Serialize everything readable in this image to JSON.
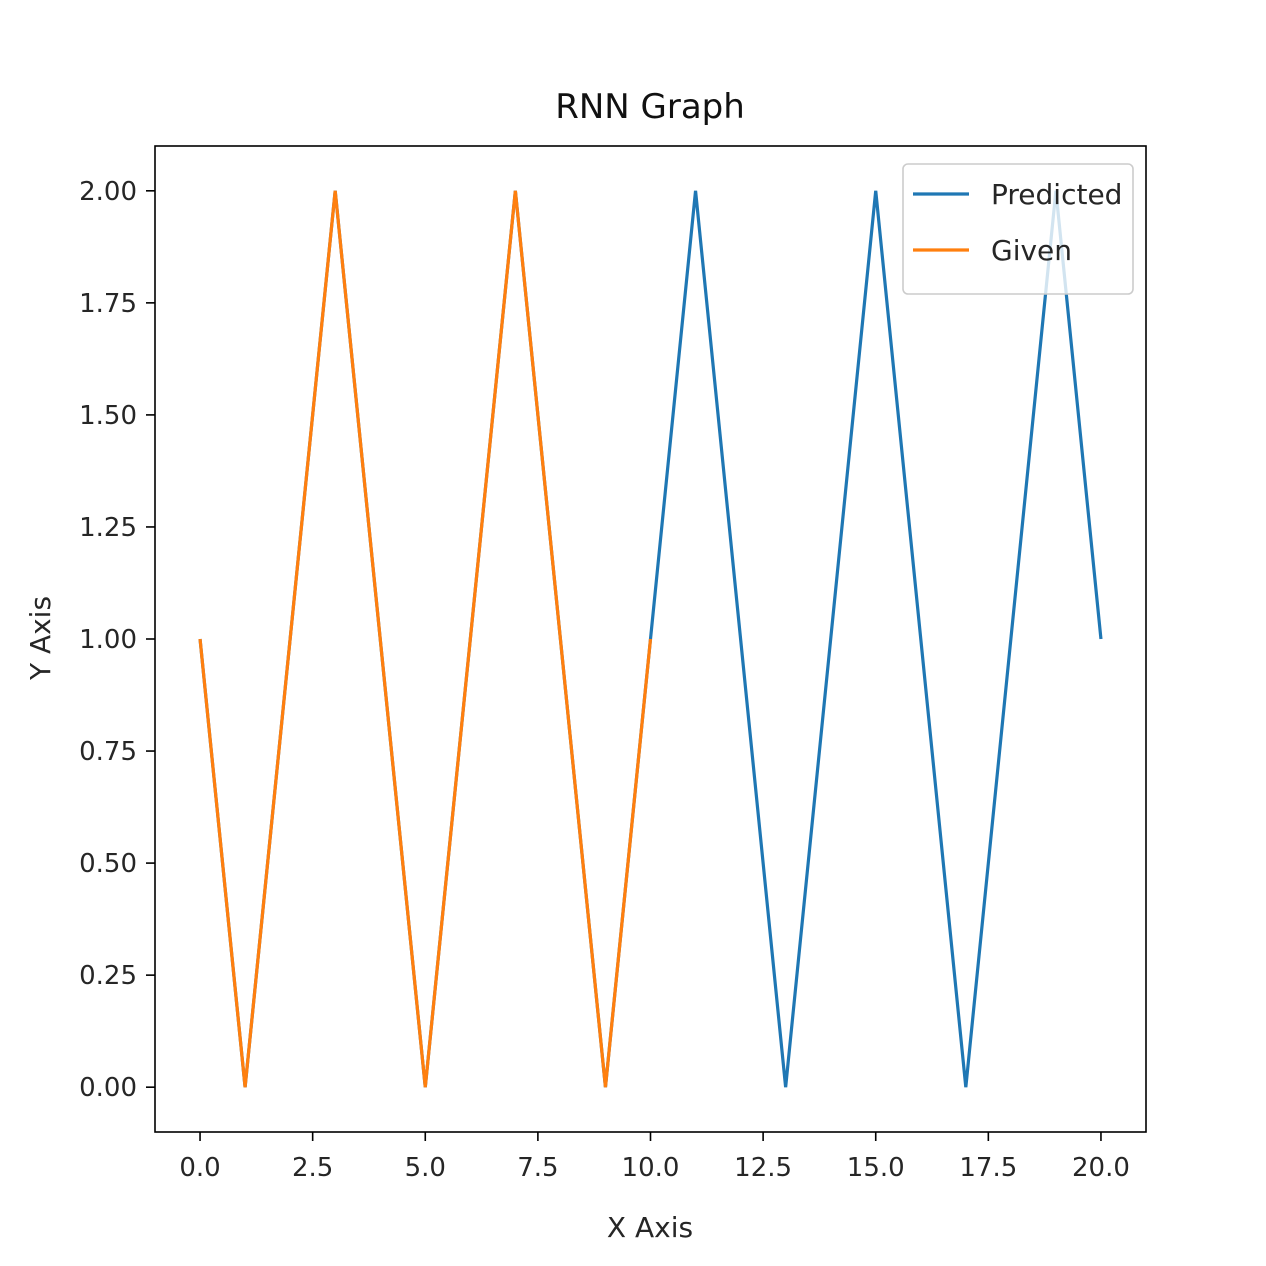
{
  "chart_data": {
    "type": "line",
    "title": "RNN Graph",
    "xlabel": "X Axis",
    "ylabel": "Y Axis",
    "xlim": [
      -1,
      21
    ],
    "ylim": [
      -0.1,
      2.1
    ],
    "xticks": [
      0,
      2.5,
      5,
      7.5,
      10,
      12.5,
      15,
      17.5,
      20
    ],
    "xtick_labels": [
      "0.0",
      "2.5",
      "5.0",
      "7.5",
      "10.0",
      "12.5",
      "15.0",
      "17.5",
      "20.0"
    ],
    "yticks": [
      0,
      0.25,
      0.5,
      0.75,
      1.0,
      1.25,
      1.5,
      1.75,
      2.0
    ],
    "ytick_labels": [
      "0.00",
      "0.25",
      "0.50",
      "0.75",
      "1.00",
      "1.25",
      "1.50",
      "1.75",
      "2.00"
    ],
    "grid": false,
    "legend_position": "top-right",
    "series": [
      {
        "name": "Predicted",
        "color": "#1f77b4",
        "x": [
          0,
          1,
          3,
          5,
          7,
          9,
          10,
          11,
          13,
          15,
          17,
          19,
          20
        ],
        "y": [
          1,
          0,
          2,
          0,
          2,
          0,
          1,
          2,
          0,
          2,
          0,
          2,
          1
        ]
      },
      {
        "name": "Given",
        "color": "#ff7f0e",
        "x": [
          0,
          1,
          3,
          5,
          7,
          9,
          10
        ],
        "y": [
          1,
          0,
          2,
          0,
          2,
          0,
          1
        ]
      }
    ]
  }
}
